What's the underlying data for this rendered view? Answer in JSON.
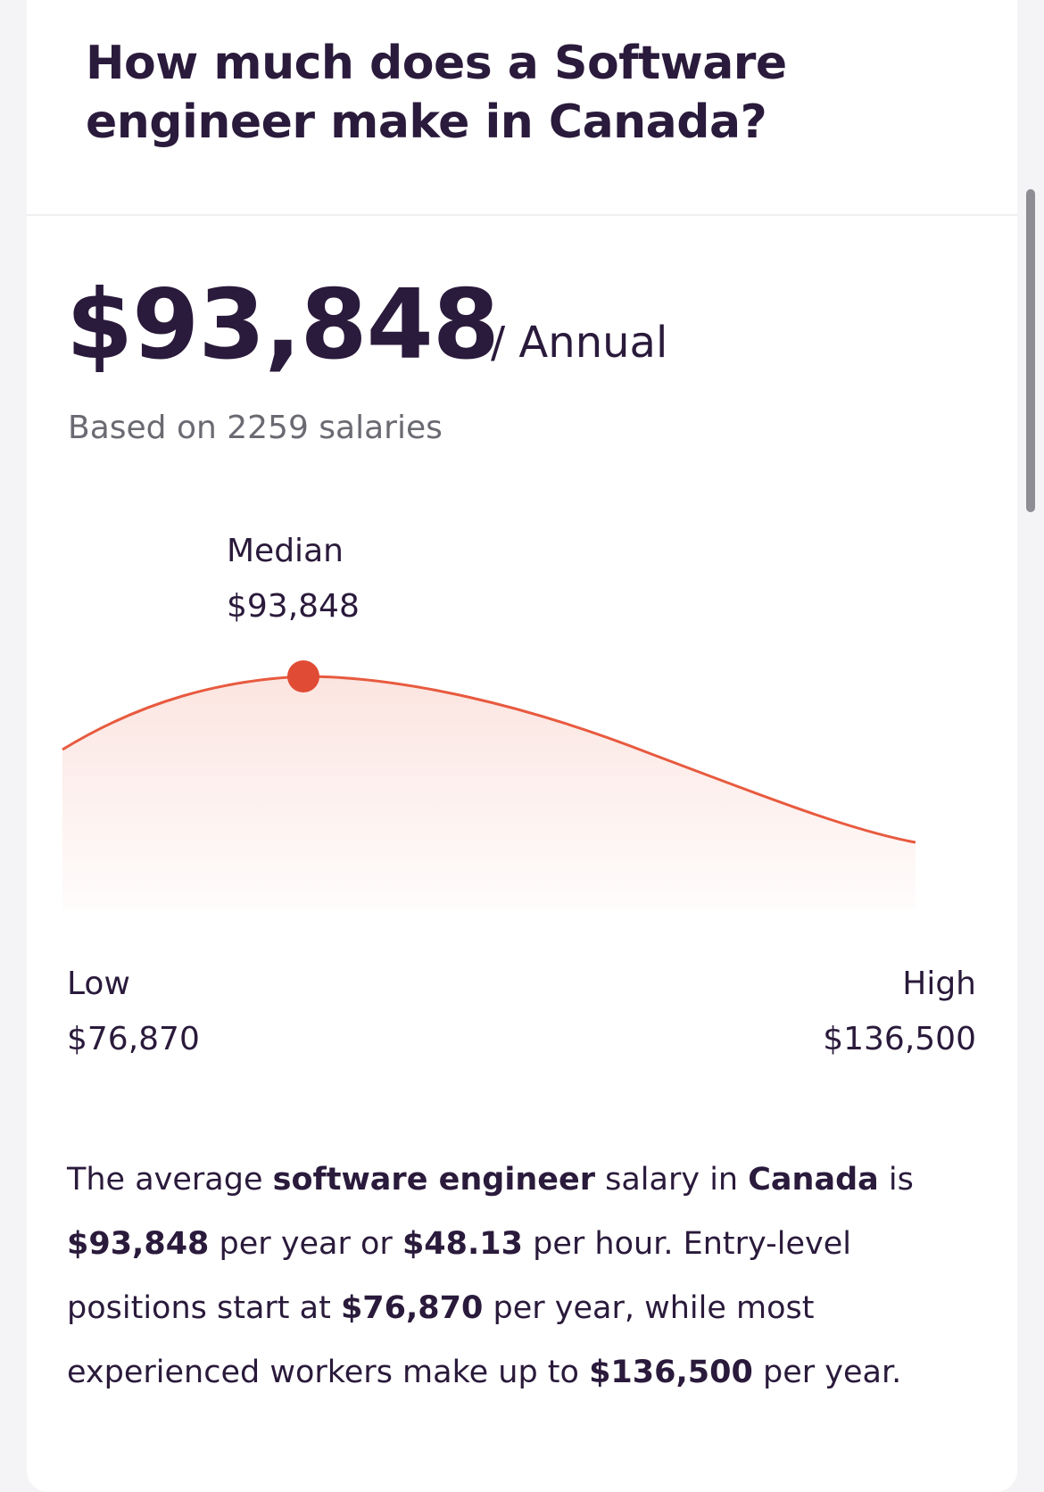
{
  "title": "How much does a Software engineer make in Canada?",
  "salary": {
    "amount": "$93,848",
    "period": "/ Annual",
    "based_on": "Based on 2259 salaries"
  },
  "chart": {
    "median_label": "Median",
    "median_value": "$93,848",
    "low_label": "Low",
    "low_value": "$76,870",
    "high_label": "High",
    "high_value": "$136,500",
    "line_color": "#e85a3f",
    "marker_color": "#e04b35"
  },
  "chart_data": {
    "type": "line",
    "x": [
      76870,
      93848,
      136500
    ],
    "x_labels": [
      "Low",
      "Median",
      "High"
    ],
    "values": [
      "$76,870",
      "$93,848",
      "$136,500"
    ]
  },
  "summary": {
    "t1": "The average ",
    "b1": "software engineer",
    "t2": " salary in ",
    "b2": "Canada",
    "t3": " is ",
    "b3": "$93,848",
    "t4": " per year or ",
    "b4": "$48.13",
    "t5": " per hour. Entry-level positions start at ",
    "b5": "$76,870",
    "t6": " per year, while most experienced workers make up to ",
    "b6": "$136,500",
    "t7": " per year."
  }
}
